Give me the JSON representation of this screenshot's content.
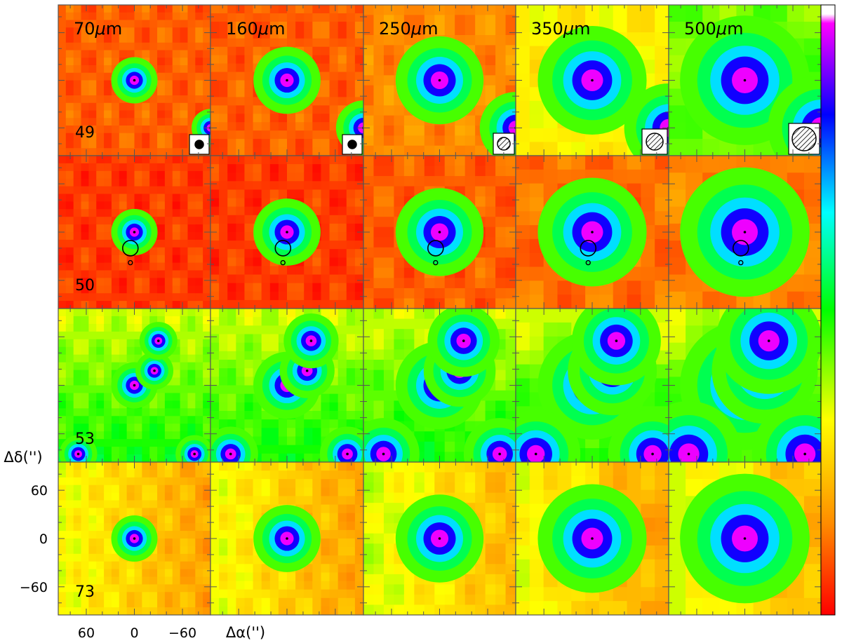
{
  "figure": {
    "columns": [
      {
        "wavelength": "70",
        "unit_mu": "μ",
        "unit_m": "m"
      },
      {
        "wavelength": "160",
        "unit_mu": "μ",
        "unit_m": "m"
      },
      {
        "wavelength": "250",
        "unit_mu": "μ",
        "unit_m": "m"
      },
      {
        "wavelength": "350",
        "unit_mu": "μ",
        "unit_m": "m"
      },
      {
        "wavelength": "500",
        "unit_mu": "μ",
        "unit_m": "m"
      }
    ],
    "rows": [
      {
        "source_id": "49",
        "extra_sources": [
          [
            -95,
            -60
          ]
        ],
        "beam_markers": true
      },
      {
        "source_id": "50",
        "extra_sources": [],
        "beam_markers": false,
        "has_open_circles": true
      },
      {
        "source_id": "53",
        "extra_sources": [
          [
            -25,
            18
          ],
          [
            -30,
            55
          ],
          [
            70,
            -85
          ],
          [
            -75,
            -85
          ]
        ],
        "beam_markers": false
      },
      {
        "source_id": "73",
        "extra_sources": [],
        "beam_markers": false
      }
    ],
    "y_axis_label": "Δδ('')",
    "x_axis_label": "Δα('')",
    "y_ticks": [
      "60",
      "0",
      "−60"
    ],
    "x_ticks": [
      "60",
      "0",
      "−60"
    ],
    "y_tick_values": [
      60,
      0,
      -60
    ],
    "x_tick_values": [
      60,
      0,
      -60
    ],
    "axis_range": [
      -95,
      95
    ],
    "colorbar": {
      "colormap": "rainbow (red → yellow → green → cyan → blue → magenta → white)",
      "colors": [
        "#ff0000",
        "#ff8c00",
        "#ffff00",
        "#00ff00",
        "#00ffff",
        "#0000ff",
        "#ff00ff",
        "#ffffff"
      ]
    }
  }
}
